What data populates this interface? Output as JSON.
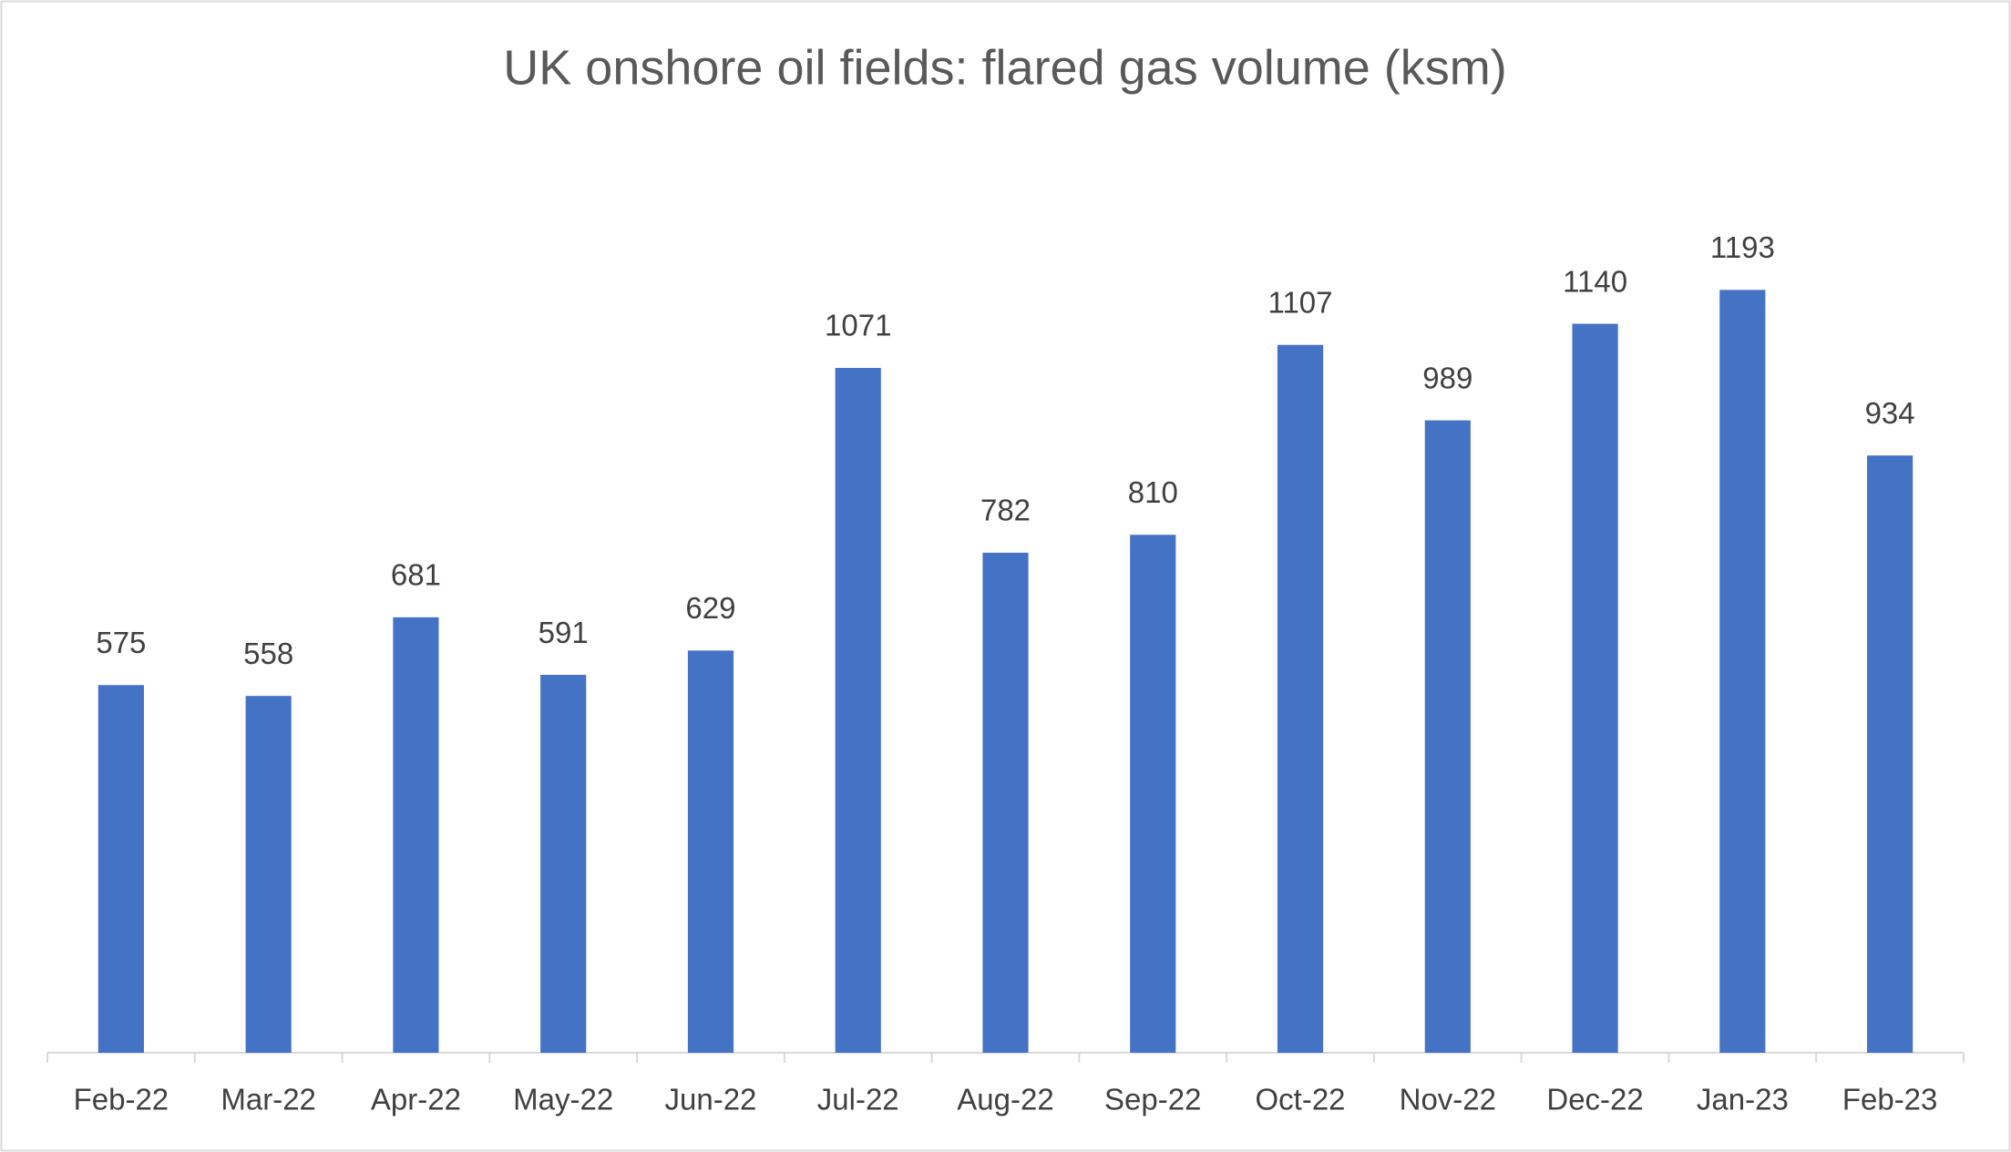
{
  "chart_data": {
    "type": "bar",
    "title": "UK onshore oil fields: flared gas volume (ksm)",
    "categories": [
      "Feb-22",
      "Mar-22",
      "Apr-22",
      "May-22",
      "Jun-22",
      "Jul-22",
      "Aug-22",
      "Sep-22",
      "Oct-22",
      "Nov-22",
      "Dec-22",
      "Jan-23",
      "Feb-23"
    ],
    "values": [
      575,
      558,
      681,
      591,
      629,
      1071,
      782,
      810,
      1107,
      989,
      1140,
      1193,
      934
    ],
    "color": "#4472c4",
    "ylim": [
      0,
      1400
    ]
  }
}
